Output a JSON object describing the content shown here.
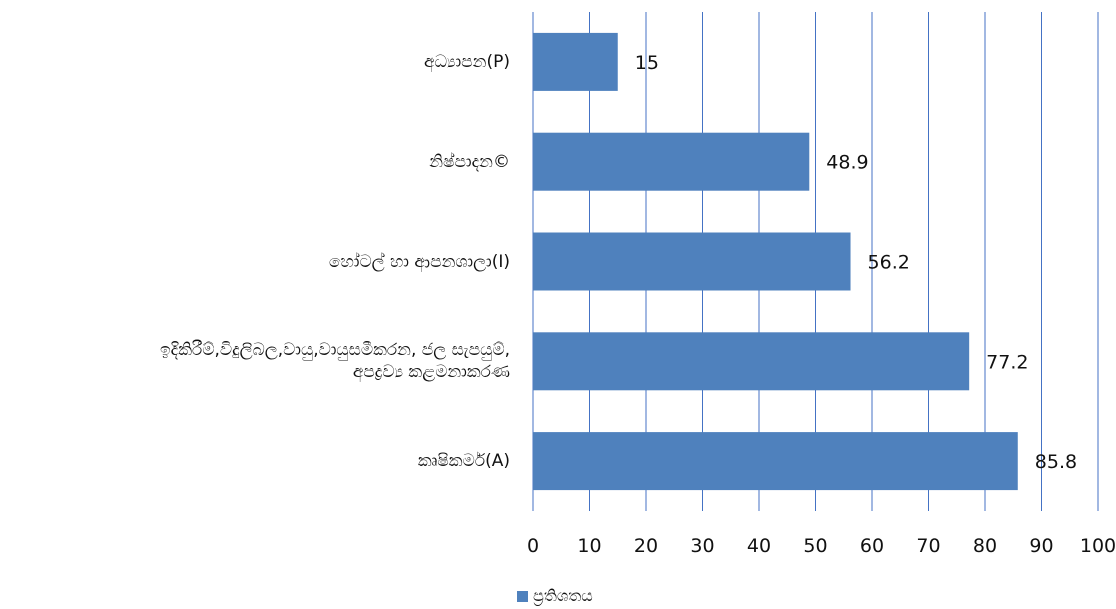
{
  "chart_data": {
    "type": "bar",
    "orientation": "horizontal",
    "categories": [
      "අධ්‍යාපන(P)",
      "නිෂ්පාදන©",
      "හෝටල් හා ආපනශාලා(I)",
      "ඉදිකිරීම්,විදුලිබල,වායු,වායුසමීකරන, ජල සැපයුම්,\nඅපද්‍රව්‍ය කළමනාකරණ",
      "කෘෂිකර්ම(A)"
    ],
    "series": [
      {
        "name": "ප්‍රතිශතය",
        "values": [
          15,
          48.9,
          56.2,
          77.2,
          85.8
        ],
        "color": "#4f81bd"
      }
    ],
    "value_labels": [
      "15",
      "48.9",
      "56.2",
      "77.2",
      "85.8"
    ],
    "xlim": [
      0,
      100
    ],
    "xticks": [
      "0",
      "10",
      "20",
      "30",
      "40",
      "50",
      "60",
      "70",
      "80",
      "90",
      "100"
    ],
    "grid": "vertical",
    "gridline_color": "#4472c4",
    "legend_position": "bottom"
  }
}
